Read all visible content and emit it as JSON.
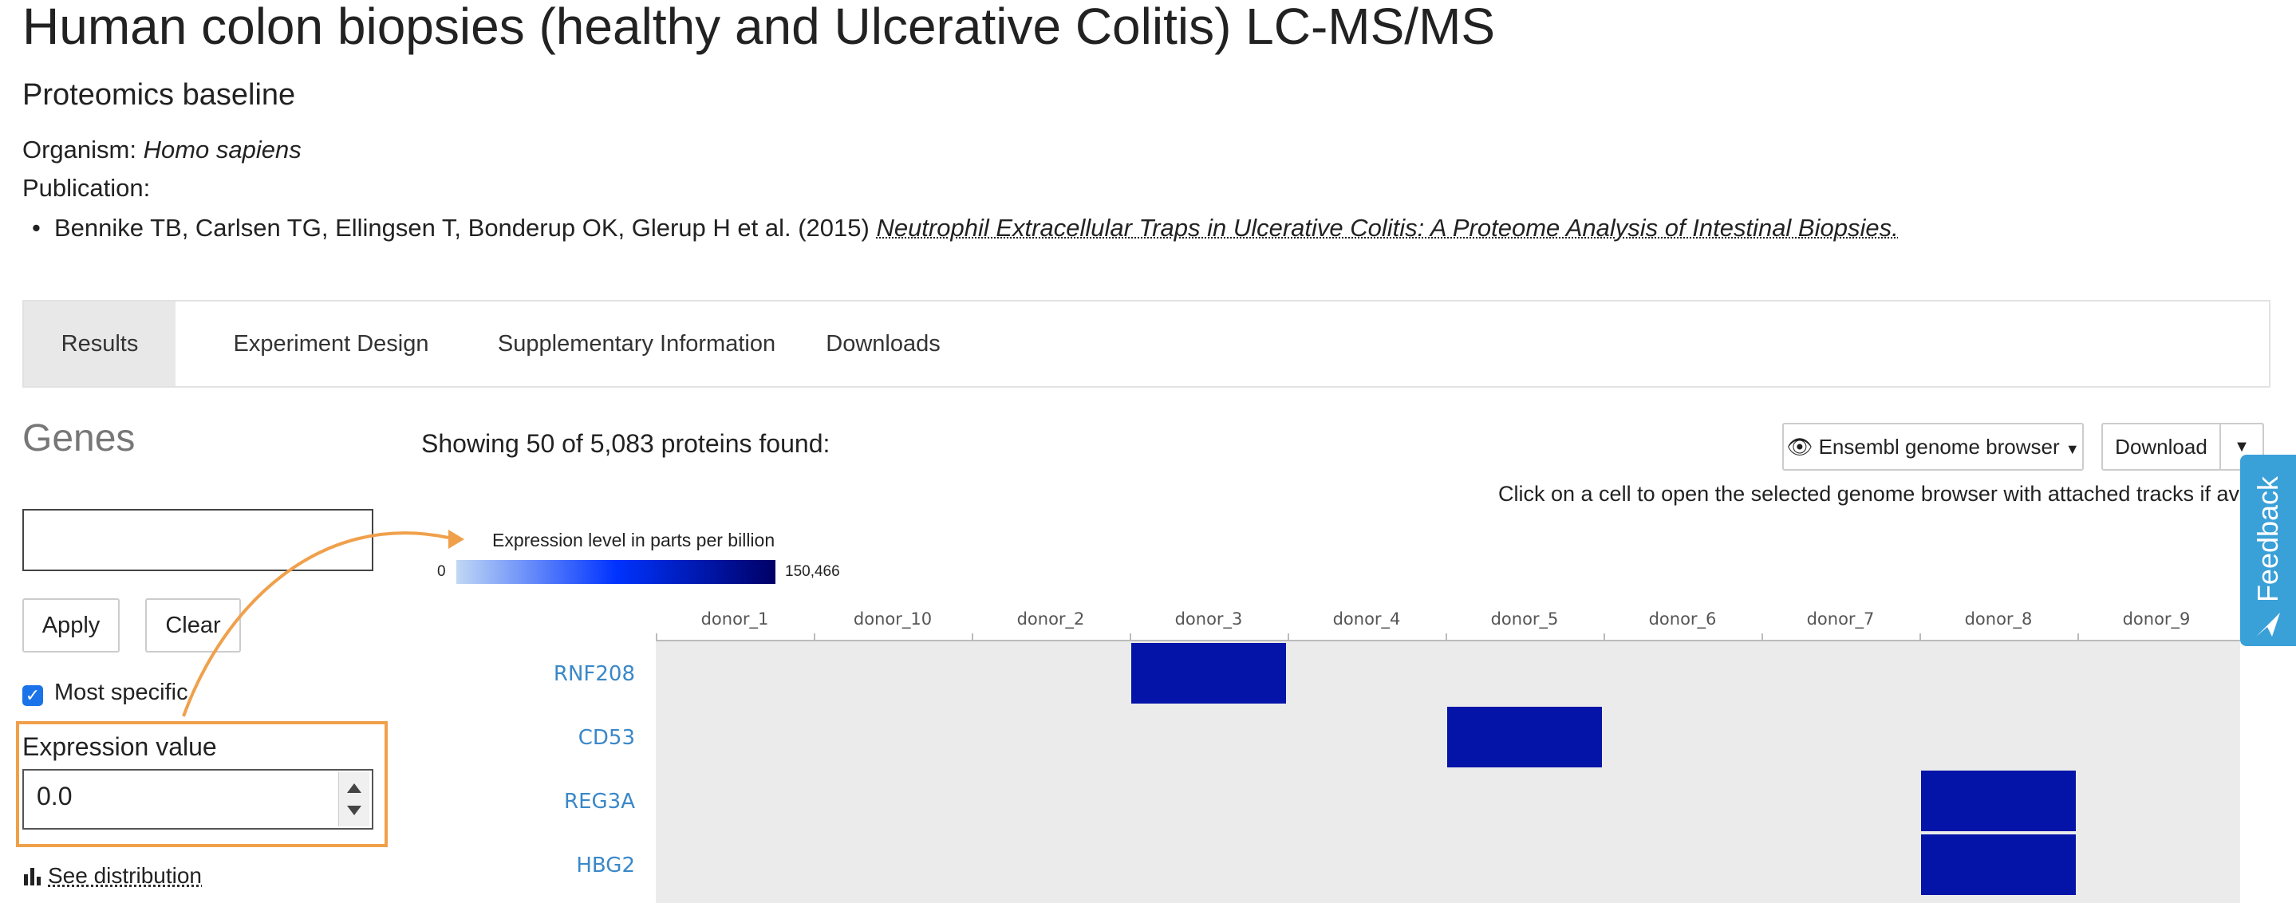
{
  "header": {
    "title": "Human colon biopsies (healthy and Ulcerative Colitis) LC-MS/MS",
    "subtitle": "Proteomics baseline",
    "organism_label": "Organism:",
    "organism_value": "Homo sapiens",
    "publication_label": "Publication:",
    "publication_authors": "Bennike TB, Carlsen TG, Ellingsen T, Bonderup OK, Glerup H et al. (2015)",
    "publication_title": "Neutrophil Extracellular Traps in Ulcerative Colitis: A Proteome Analysis of Intestinal Biopsies."
  },
  "tabs": [
    {
      "label": "Results",
      "active": true
    },
    {
      "label": "Experiment Design",
      "active": false
    },
    {
      "label": "Supplementary Information",
      "active": false
    },
    {
      "label": "Downloads",
      "active": false
    }
  ],
  "sidebar": {
    "heading": "Genes",
    "search_value": "",
    "apply_label": "Apply",
    "clear_label": "Clear",
    "most_specific_label": "Most specific",
    "most_specific_checked": true,
    "expression_label": "Expression value",
    "expression_value": "0.0",
    "see_distribution_label": "See distribution"
  },
  "results": {
    "showing_text": "Showing 50 of 5,083 proteins found:",
    "genome_browser_label": "Ensembl genome browser",
    "download_label": "Download",
    "click_hint": "Click on a cell to open the selected genome browser with attached tracks if available"
  },
  "feedback_label": "Feedback",
  "legend": {
    "title": "Expression level in parts per billion",
    "min": "0",
    "max": "150,466",
    "colors": [
      "#c0d8f4",
      "#0033ff",
      "#000066"
    ]
  },
  "heatmap": {
    "columns": [
      "donor_1",
      "donor_10",
      "donor_2",
      "donor_3",
      "donor_4",
      "donor_5",
      "donor_6",
      "donor_7",
      "donor_8",
      "donor_9"
    ],
    "rows": [
      {
        "gene": "RNF208",
        "expressed_in": [
          "donor_3"
        ]
      },
      {
        "gene": "CD53",
        "expressed_in": [
          "donor_5"
        ]
      },
      {
        "gene": "REG3A",
        "expressed_in": [
          "donor_8"
        ]
      },
      {
        "gene": "HBG2",
        "expressed_in": [
          "donor_8"
        ]
      }
    ],
    "cell_color": "#0414a8",
    "background_color": "#ebebeb"
  },
  "accent_colors": {
    "link": "#3a88c8",
    "highlight": "#f0a04b",
    "feedback": "#3aa0d8"
  }
}
